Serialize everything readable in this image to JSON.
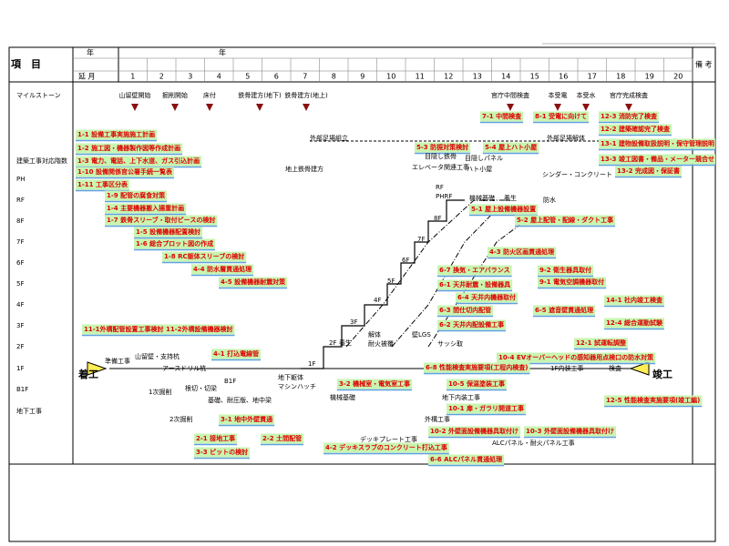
{
  "header": {
    "item": "項　目",
    "year_left": "年",
    "year_main": "年",
    "elapsed": "延 月",
    "months": [
      "1",
      "2",
      "3",
      "4",
      "5",
      "6",
      "7",
      "8",
      "9",
      "10",
      "11",
      "12",
      "13",
      "14",
      "15",
      "16",
      "17",
      "18",
      "19",
      "20"
    ],
    "remarks": "備 考"
  },
  "rows": [
    "マイルストーン",
    "建築工事対応階数",
    "PH",
    "RF",
    "8F",
    "7F",
    "6F",
    "5F",
    "4F",
    "3F",
    "2F",
    "1F",
    "B1F",
    "地下工事"
  ],
  "milestones": [
    "山留壁開始",
    "掘削開始",
    "床付",
    "鉄骨建方(地下)",
    "鉄骨建方(地上)",
    "官庁中間検査",
    "本受電",
    "本受水",
    "官庁完成検査"
  ],
  "start": "着工",
  "finish": "竣工",
  "tasks": [
    "1-1 設備工事実施施工計画",
    "1-2 施工図・機器製作図等作成計画",
    "1-3 電力、電話、上下水道、ガス引込計画",
    "1-10 設備関係官公署手続一覧表",
    "1-11 工事区分表",
    "1-9 配管の腐食対策",
    "1-4 主要機器搬入揚重計画",
    "1-7 鉄骨スリーブ・取付ピースの検討",
    "1-5 設備機器配置検討",
    "1-6 総合プロット図の作成",
    "1-8 RC躯体スリーブの検討",
    "4-4 防水層貫通処理",
    "4-5 設備機器耐震対策",
    "11-1外構配管設置工事検討",
    "11-2外構設備機器検討",
    "4-1 打込電線管",
    "3-1 地中外壁貫通",
    "2-1 接地工事",
    "2-2 土間配管",
    "3-3 ピットの検討",
    "5-3 防振対策検討",
    "5-4 屋上ハト小屋",
    "5-1 屋上設備機器設置",
    "5-2 屋上配管・配線・ダクト工事",
    "4-3 防火区画貫通処理",
    "6-7 換気・エアバランス",
    "9-2 衛生器具取付",
    "6-1 天井耐震・設備器具",
    "9-1 電気空調機器取付",
    "6-4 天井内機器取付",
    "6-3 間仕切内配管",
    "6-5 遮音壁貫通処理",
    "6-2 天井内配設備工事",
    "14-1 社内竣工検査",
    "12-4 総合運動試験",
    "12-1 試運転調整",
    "10-4 EVオーバーヘッドの感知器用点検口の防水対策",
    "6-8 性能検査実施要項(工程内検査)",
    "3-2 機械室・電気室工事",
    "10-5 保温塗装工事",
    "10-1 扉・ガラリ開道工事",
    "12-5 性能検査実施要項(竣工編)",
    "10-2 外壁面設備機器具取付け",
    "10-3 外壁面設備機器具取付け",
    "4-2 デッキスラブのコンクリート打込工事",
    "6-6 ALCパネル貫通処理",
    "7-1 中間検査",
    "8-1 受電に向けて",
    "12-3 消防完了検査",
    "12-2 建築確認完了検査",
    "13-1 建物設備取扱説明・保守管理説明",
    "13-3 竣工図書・備品・メーター競合せ",
    "13-2 完成図・保証書"
  ],
  "notes": [
    "外部足場組立",
    "外部足場解体",
    "地上鉄骨建方",
    "目隠し鉄骨",
    "エレベータ関連工事",
    "ハト小屋",
    "目隠しパネル",
    "シンダー・コンクリート",
    "機械基礎",
    "養生",
    "防水",
    "RF",
    "PHRF",
    "8F",
    "7F",
    "6F",
    "5F",
    "4F",
    "3F",
    "2F",
    "1F",
    "養生",
    "解体",
    "耐火被覆",
    "壁LGS",
    "サッシ取",
    "準備工事",
    "山留壁・支持杭",
    "アースドリル杭",
    "1次掘削",
    "2次掘削",
    "根切・切梁",
    "B1F",
    "基礎、耐圧版、地中梁",
    "地下躯体",
    "マシンハッチ",
    "機械基礎",
    "地下内装工事",
    "外構工事",
    "デッキプレート工事",
    "ALCパネル・耐火パネル工事",
    "1F内装工事",
    "検査"
  ]
}
